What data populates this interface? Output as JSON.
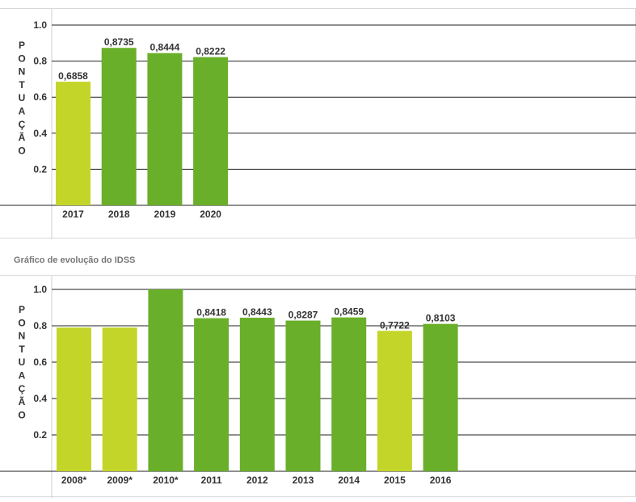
{
  "section_title": "Gráfico de evolução do IDSS",
  "colors": {
    "light": "#c4d52a",
    "dark": "#6aaf2a",
    "grid": "#222222",
    "frame": "#cfcfcf"
  },
  "chart_data": [
    {
      "type": "bar",
      "ylabel": "PONTUAÇÃO",
      "ylim": [
        0,
        1.0
      ],
      "yticks": [
        "0.2",
        "0.4",
        "0.6",
        "0.8",
        "1.0"
      ],
      "grid": true,
      "categories": [
        "2017",
        "2018",
        "2019",
        "2020"
      ],
      "values": [
        0.6858,
        0.8735,
        0.8444,
        0.8222
      ],
      "labels": [
        "0,6858",
        "0,8735",
        "0,8444",
        "0,8222"
      ],
      "bar_colors": [
        "light",
        "dark",
        "dark",
        "dark"
      ]
    },
    {
      "type": "bar",
      "ylabel": "PONTUAÇÃO",
      "ylim": [
        0,
        1.0
      ],
      "yticks": [
        "0.2",
        "0.4",
        "0.6",
        "0.8",
        "1.0"
      ],
      "grid": true,
      "categories": [
        "2008*",
        "2009*",
        "2010*",
        "2011",
        "2012",
        "2013",
        "2014",
        "2015",
        "2016"
      ],
      "values": [
        0.79,
        0.79,
        1.0,
        0.8418,
        0.8443,
        0.8287,
        0.8459,
        0.7722,
        0.8103
      ],
      "labels": [
        "",
        "",
        "",
        "0,8418",
        "0,8443",
        "0,8287",
        "0,8459",
        "0,7722",
        "0,8103"
      ],
      "bar_colors": [
        "light",
        "light",
        "dark",
        "dark",
        "dark",
        "dark",
        "dark",
        "light",
        "dark"
      ]
    }
  ]
}
